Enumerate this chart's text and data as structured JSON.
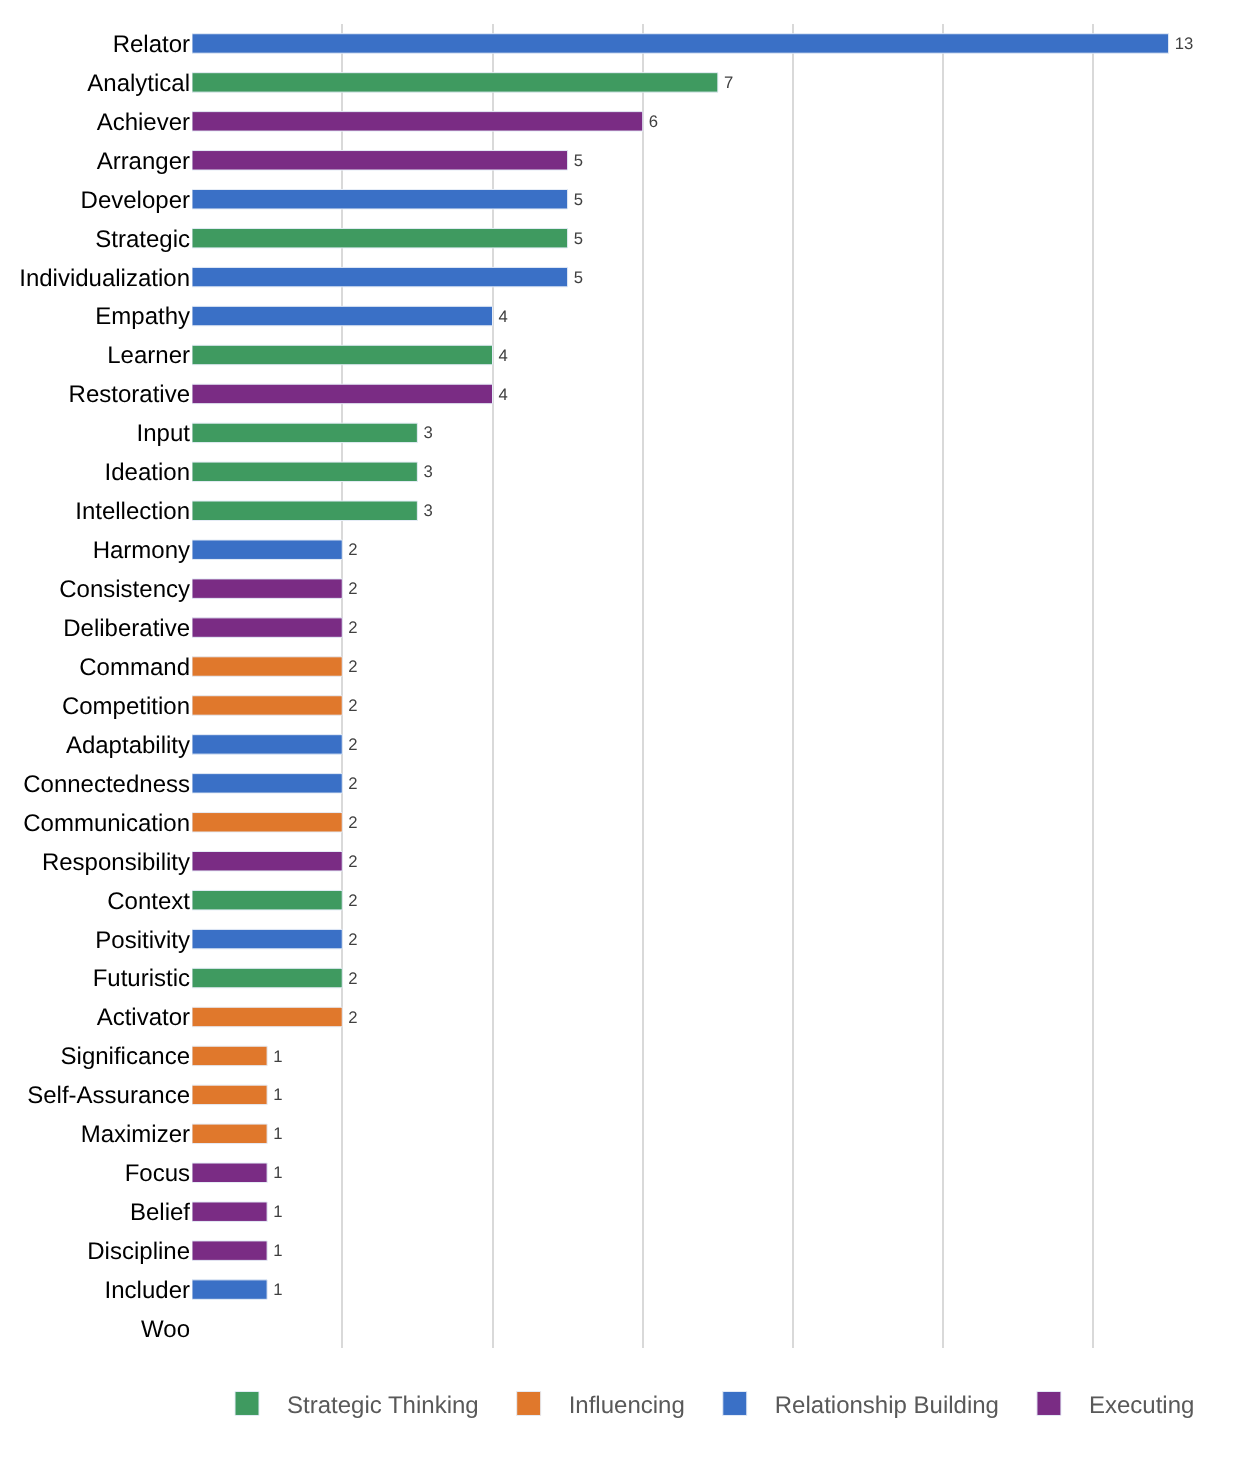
{
  "chart_data": {
    "type": "bar",
    "orientation": "horizontal",
    "categories": [
      "Relator",
      "Analytical",
      "Achiever",
      "Arranger",
      "Developer",
      "Strategic",
      "Individualization",
      "Empathy",
      "Learner",
      "Restorative",
      "Input",
      "Ideation",
      "Intellection",
      "Harmony",
      "Consistency",
      "Deliberative",
      "Command",
      "Competition",
      "Adaptability",
      "Connectedness",
      "Communication",
      "Responsibility",
      "Context",
      "Positivity",
      "Futuristic",
      "Activator",
      "Significance",
      "Self-Assurance",
      "Maximizer",
      "Focus",
      "Belief",
      "Discipline",
      "Includer",
      "Woo"
    ],
    "series": [
      {
        "name": "Strategic Thinking",
        "color": "#3f9a60",
        "values": [
          null,
          7,
          null,
          null,
          null,
          5,
          null,
          null,
          4,
          null,
          3,
          3,
          3,
          null,
          null,
          null,
          null,
          null,
          null,
          null,
          null,
          null,
          2,
          null,
          2,
          null,
          null,
          null,
          null,
          null,
          null,
          null,
          null,
          null
        ]
      },
      {
        "name": "Influencing",
        "color": "#e0782c",
        "values": [
          null,
          null,
          null,
          null,
          null,
          null,
          null,
          null,
          null,
          null,
          null,
          null,
          null,
          null,
          null,
          null,
          2,
          2,
          null,
          null,
          2,
          null,
          null,
          null,
          null,
          2,
          1,
          1,
          1,
          null,
          null,
          null,
          null,
          null
        ]
      },
      {
        "name": "Relationship Building",
        "color": "#3a70c6",
        "values": [
          13,
          null,
          null,
          null,
          5,
          null,
          5,
          4,
          null,
          null,
          null,
          null,
          null,
          2,
          null,
          null,
          null,
          null,
          2,
          2,
          null,
          null,
          null,
          2,
          null,
          null,
          null,
          null,
          null,
          null,
          null,
          null,
          1,
          null
        ]
      },
      {
        "name": "Executing",
        "color": "#7a2c84",
        "values": [
          null,
          null,
          6,
          5,
          null,
          null,
          null,
          null,
          null,
          4,
          null,
          null,
          null,
          null,
          2,
          2,
          null,
          null,
          null,
          null,
          null,
          2,
          null,
          null,
          null,
          null,
          null,
          null,
          null,
          1,
          1,
          1,
          null,
          null
        ]
      }
    ],
    "tick_labels": "y",
    "grid": "x",
    "legend": "bottom",
    "data_labels": true
  }
}
